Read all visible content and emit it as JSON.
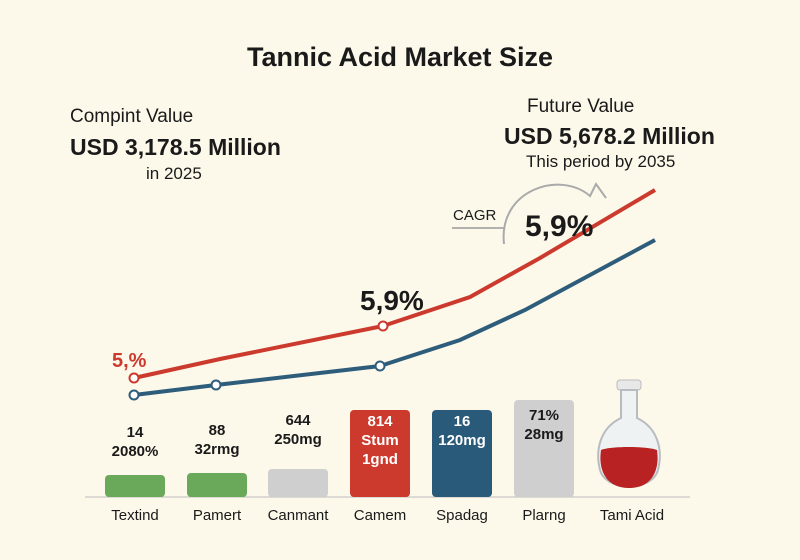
{
  "chart_data": {
    "type": "bar",
    "title": "Tannic Acid Market Size",
    "current": {
      "label": "Compint Value",
      "value": "USD 3,178.5 Million",
      "sub": "in 2025"
    },
    "future": {
      "label": "Future Value",
      "value": "USD 5,678.2 Million",
      "sub": "This period by 2035"
    },
    "cagr_label": "CAGR",
    "annotations": [
      "5,%",
      "5,9%",
      "5,9%"
    ],
    "categories": [
      "Textind",
      "Pamert",
      "Canmant",
      "Camem",
      "Spadag",
      "Plarng",
      "Tami Acid"
    ],
    "bar_labels": [
      [
        "14",
        "2080%"
      ],
      [
        "88",
        "32rmg"
      ],
      [
        "644",
        "250mg"
      ],
      [
        "814",
        "Stum",
        "1gnd"
      ],
      [
        "16",
        "120mg"
      ],
      [
        "71%",
        "28mg"
      ]
    ],
    "bar_colors": [
      "#6aa95a",
      "#6aa95a",
      "#cfcfcf",
      "#cc3a2e",
      "#2a5a7a",
      "#cfcfcf"
    ],
    "series_colors": [
      "#cc3a2e",
      "#2d5d7a"
    ],
    "grid": false,
    "legend": "none"
  }
}
